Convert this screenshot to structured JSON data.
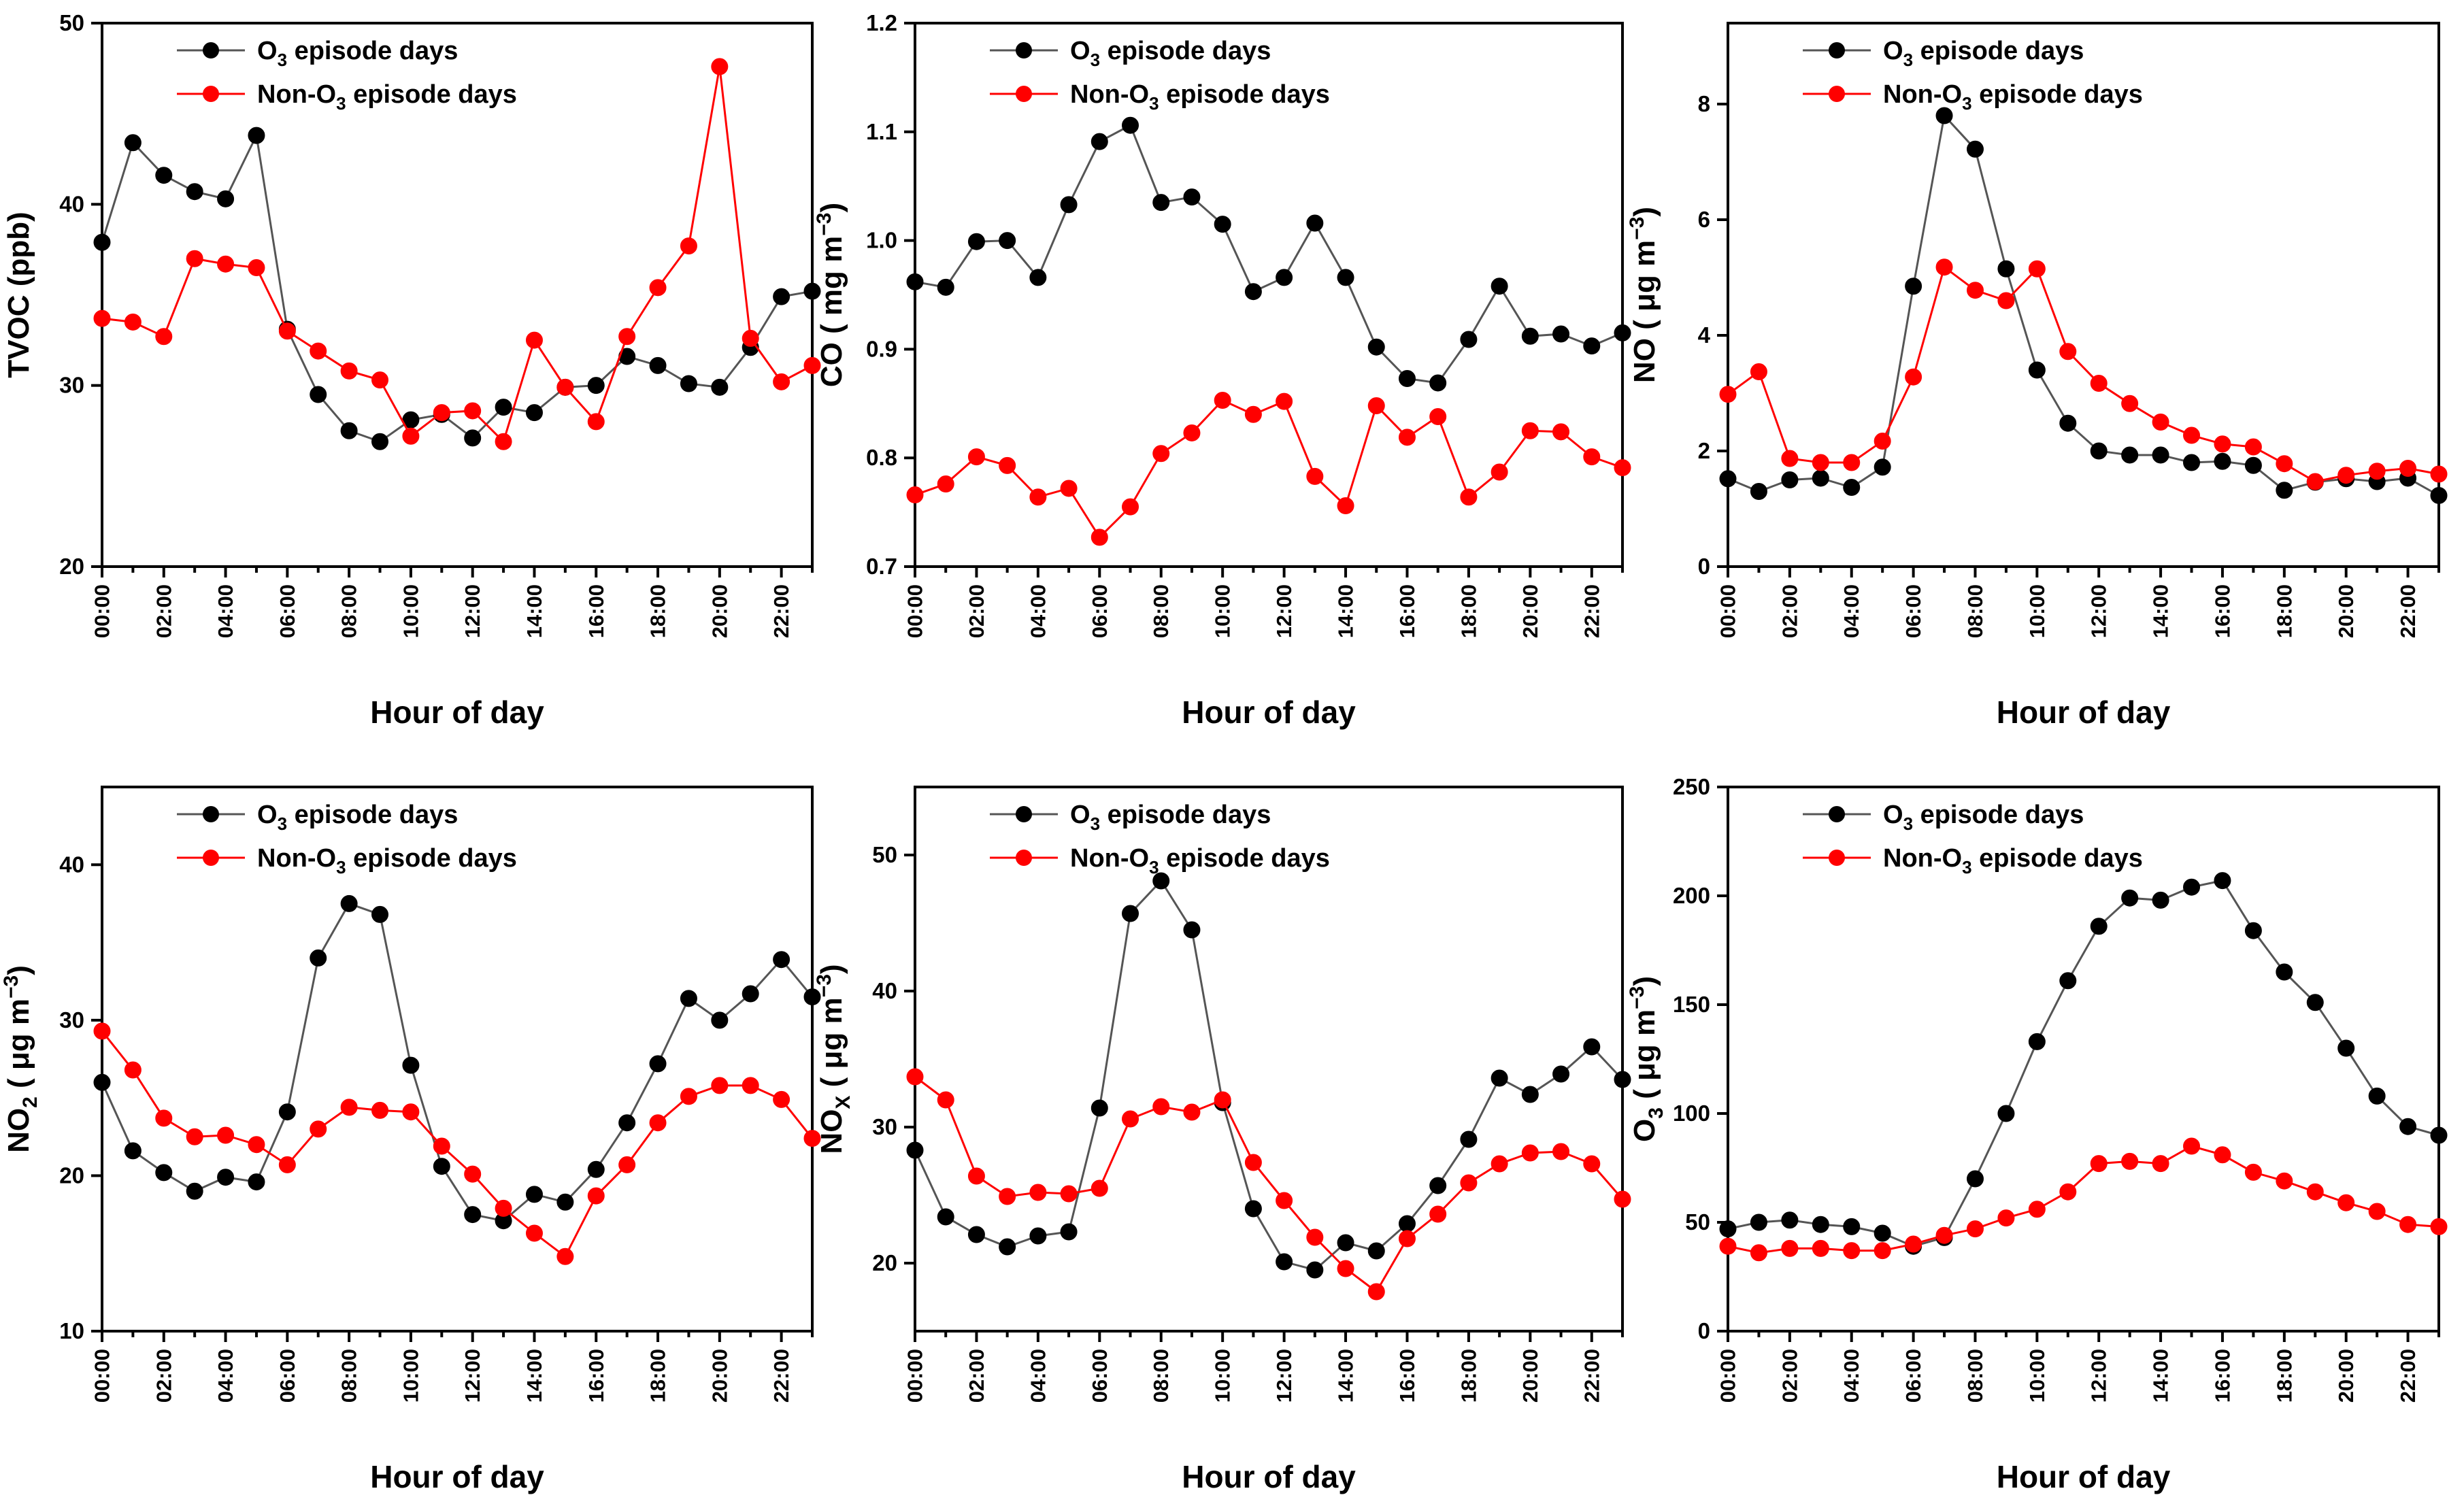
{
  "figure": {
    "xlabel": "Hour of day",
    "hours": [
      "00:00",
      "01:00",
      "02:00",
      "03:00",
      "04:00",
      "05:00",
      "06:00",
      "07:00",
      "08:00",
      "09:00",
      "10:00",
      "11:00",
      "12:00",
      "13:00",
      "14:00",
      "15:00",
      "16:00",
      "17:00",
      "18:00",
      "19:00",
      "20:00",
      "21:00",
      "22:00",
      "23:00"
    ],
    "tick_labels": [
      "00:00",
      "02:00",
      "04:00",
      "06:00",
      "08:00",
      "10:00",
      "12:00",
      "14:00",
      "16:00",
      "18:00",
      "20:00",
      "22:00"
    ],
    "colors": {
      "o3_episode": "#000000",
      "non_o3_episode": "#ff0000"
    }
  },
  "chart_data": [
    {
      "type": "line",
      "title": "",
      "xlabel": "Hour of day",
      "ylabel": {
        "main": "TVOC (ppb)",
        "sub": "",
        "tail": ""
      },
      "ylim": [
        20,
        50
      ],
      "yticks": [
        20,
        30,
        40,
        50
      ],
      "ytick_labels": [
        "20",
        "30",
        "40",
        "50"
      ],
      "legend_position": "top-center",
      "series": [
        {
          "name": "O3 episode days",
          "legend": {
            "pre": "O",
            "sub": "3",
            "post": " episode days"
          },
          "color": "#000000",
          "values": [
            37.9,
            43.4,
            41.6,
            40.7,
            40.3,
            43.8,
            33.1,
            29.5,
            27.5,
            26.9,
            28.1,
            28.4,
            27.1,
            28.8,
            28.5,
            29.9,
            30.0,
            31.6,
            31.1,
            30.1,
            29.9,
            32.1,
            34.9,
            35.2
          ]
        },
        {
          "name": "Non-O3 episode days",
          "legend": {
            "pre": "Non-O",
            "sub": "3",
            "post": " episode days"
          },
          "color": "#ff0000",
          "values": [
            33.7,
            33.5,
            32.7,
            37.0,
            36.7,
            36.5,
            33.0,
            31.9,
            30.8,
            30.3,
            27.2,
            28.5,
            28.6,
            26.9,
            32.5,
            29.9,
            28.0,
            32.7,
            35.4,
            37.7,
            47.6,
            32.6,
            30.2,
            31.1
          ]
        }
      ]
    },
    {
      "type": "line",
      "title": "",
      "xlabel": "Hour of day",
      "ylabel": {
        "main": "CO ( mg m",
        "sub": "",
        "sup": "−3",
        "tail": ")"
      },
      "ylim": [
        0.7,
        1.2
      ],
      "yticks": [
        0.7,
        0.8,
        0.9,
        1.0,
        1.1,
        1.2
      ],
      "ytick_labels": [
        "0.7",
        "0.8",
        "0.9",
        "1.0",
        "1.1",
        "1.2"
      ],
      "legend_position": "top-center",
      "series": [
        {
          "name": "O3 episode days",
          "legend": {
            "pre": "O",
            "sub": "3",
            "post": " episode days"
          },
          "color": "#000000",
          "values": [
            0.962,
            0.957,
            0.999,
            1.0,
            0.966,
            1.033,
            1.091,
            1.106,
            1.035,
            1.04,
            1.015,
            0.953,
            0.966,
            1.016,
            0.966,
            0.902,
            0.873,
            0.869,
            0.909,
            0.958,
            0.912,
            0.914,
            0.903,
            0.915
          ]
        },
        {
          "name": "Non-O3 episode days",
          "legend": {
            "pre": "Non-O",
            "sub": "3",
            "post": " episode days"
          },
          "color": "#ff0000",
          "values": [
            0.766,
            0.776,
            0.801,
            0.793,
            0.764,
            0.772,
            0.727,
            0.755,
            0.804,
            0.823,
            0.853,
            0.84,
            0.852,
            0.783,
            0.756,
            0.848,
            0.819,
            0.838,
            0.764,
            0.787,
            0.825,
            0.824,
            0.801,
            0.791
          ]
        }
      ]
    },
    {
      "type": "line",
      "title": "",
      "xlabel": "Hour of day",
      "ylabel": {
        "main": "NO ( μg m",
        "sub": "",
        "sup": "−3",
        "tail": ")"
      },
      "ylim": [
        0,
        9.4
      ],
      "yticks": [
        0,
        2,
        4,
        6,
        8
      ],
      "ytick_labels": [
        "0",
        "2",
        "4",
        "6",
        "8"
      ],
      "legend_position": "top-center",
      "series": [
        {
          "name": "O3 episode days",
          "legend": {
            "pre": "O",
            "sub": "3",
            "post": " episode days"
          },
          "color": "#000000",
          "values": [
            1.52,
            1.3,
            1.5,
            1.53,
            1.37,
            1.72,
            4.85,
            7.8,
            7.22,
            5.15,
            3.4,
            2.48,
            2.0,
            1.93,
            1.93,
            1.8,
            1.82,
            1.75,
            1.32,
            1.46,
            1.52,
            1.47,
            1.53,
            1.23
          ]
        },
        {
          "name": "Non-O3 episode days",
          "legend": {
            "pre": "Non-O",
            "sub": "3",
            "post": " episode days"
          },
          "color": "#ff0000",
          "values": [
            2.98,
            3.37,
            1.87,
            1.8,
            1.8,
            2.17,
            3.28,
            5.18,
            4.78,
            4.6,
            5.15,
            3.72,
            3.17,
            2.82,
            2.5,
            2.27,
            2.12,
            2.07,
            1.78,
            1.47,
            1.58,
            1.65,
            1.7,
            1.6
          ]
        }
      ]
    },
    {
      "type": "line",
      "title": "",
      "xlabel": "Hour of day",
      "ylabel": {
        "main": "NO",
        "sub": "2",
        "mid": " ( μg m",
        "sup": "−3",
        "tail": ")"
      },
      "ylim": [
        10,
        45
      ],
      "yticks": [
        10,
        20,
        30,
        40
      ],
      "ytick_labels": [
        "10",
        "20",
        "30",
        "40"
      ],
      "legend_position": "top-center",
      "series": [
        {
          "name": "O3 episode days",
          "legend": {
            "pre": "O",
            "sub": "3",
            "post": " episode days"
          },
          "color": "#000000",
          "values": [
            26.0,
            21.6,
            20.2,
            19.0,
            19.9,
            19.6,
            24.1,
            34.0,
            37.5,
            36.8,
            27.1,
            20.6,
            17.5,
            17.1,
            18.8,
            18.3,
            20.4,
            23.4,
            27.2,
            31.4,
            30.0,
            31.7,
            33.9,
            31.5
          ]
        },
        {
          "name": "Non-O3 episode days",
          "legend": {
            "pre": "Non-O",
            "sub": "3",
            "post": " episode days"
          },
          "color": "#ff0000",
          "values": [
            29.3,
            26.8,
            23.7,
            22.5,
            22.6,
            22.0,
            20.7,
            23.0,
            24.4,
            24.2,
            24.1,
            21.9,
            20.1,
            17.9,
            16.3,
            14.8,
            18.7,
            20.7,
            23.4,
            25.1,
            25.8,
            25.8,
            24.9,
            22.4
          ]
        }
      ]
    },
    {
      "type": "line",
      "title": "",
      "xlabel": "Hour of day",
      "ylabel": {
        "main": "NO",
        "sub": "X",
        "mid": " ( μg m",
        "sup": "−3",
        "tail": ")"
      },
      "ylim": [
        15,
        55
      ],
      "yticks": [
        20,
        30,
        40,
        50
      ],
      "ytick_labels": [
        "20",
        "30",
        "40",
        "50"
      ],
      "legend_position": "top-center",
      "series": [
        {
          "name": "O3 episode days",
          "legend": {
            "pre": "O",
            "sub": "3",
            "post": " episode days"
          },
          "color": "#000000",
          "values": [
            28.3,
            23.4,
            22.1,
            21.2,
            22.0,
            22.3,
            31.4,
            45.7,
            48.1,
            44.5,
            31.8,
            24.0,
            20.1,
            19.5,
            21.5,
            20.9,
            22.9,
            25.7,
            29.1,
            33.6,
            32.4,
            33.9,
            35.9,
            33.5
          ]
        },
        {
          "name": "Non-O3 episode days",
          "legend": {
            "pre": "Non-O",
            "sub": "3",
            "post": " episode days"
          },
          "color": "#ff0000",
          "values": [
            33.7,
            32.0,
            26.4,
            24.9,
            25.2,
            25.1,
            25.5,
            30.6,
            31.5,
            31.1,
            32.0,
            27.4,
            24.6,
            21.9,
            19.6,
            17.9,
            21.8,
            23.6,
            25.9,
            27.3,
            28.1,
            28.2,
            27.3,
            24.7
          ]
        }
      ]
    },
    {
      "type": "line",
      "title": "",
      "xlabel": "Hour of day",
      "ylabel": {
        "main": "O",
        "sub": "3",
        "mid": " ( μg m",
        "sup": "−3",
        "tail": ")"
      },
      "ylim": [
        0,
        250
      ],
      "yticks": [
        0,
        50,
        100,
        150,
        200,
        250
      ],
      "ytick_labels": [
        "0",
        "50",
        "100",
        "150",
        "200",
        "250"
      ],
      "legend_position": "top-center",
      "series": [
        {
          "name": "O3 episode days",
          "legend": {
            "pre": "O",
            "sub": "3",
            "post": " episode days"
          },
          "color": "#000000",
          "values": [
            47,
            50,
            51,
            49,
            48,
            45,
            39,
            43,
            70,
            100,
            133,
            161,
            186,
            199,
            198,
            204,
            207,
            184,
            165,
            151,
            130,
            108,
            94,
            90
          ]
        },
        {
          "name": "Non-O3 episode days",
          "legend": {
            "pre": "Non-O",
            "sub": "3",
            "post": " episode days"
          },
          "color": "#ff0000",
          "values": [
            39,
            36,
            38,
            38,
            37,
            37,
            40,
            44,
            47,
            52,
            56,
            64,
            77,
            78,
            77,
            85,
            81,
            73,
            69,
            64,
            59,
            55,
            49,
            48
          ]
        }
      ]
    }
  ]
}
